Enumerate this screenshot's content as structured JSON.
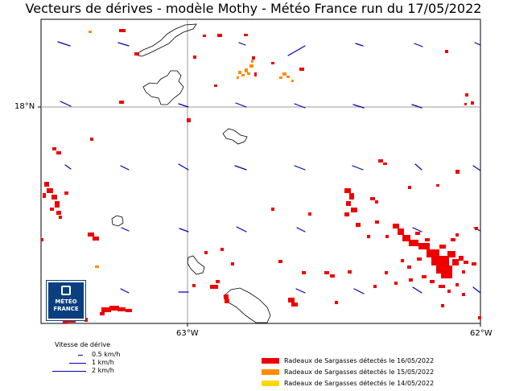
{
  "title": "Vecteurs de dérives - modèle Mothy - Météo France run du 17/05/2022",
  "axes": {
    "lat_label": "18°N",
    "lon_labels": [
      "63°W",
      "62°W"
    ]
  },
  "legend_speed": {
    "header": "Vitesse de dérive",
    "items": [
      "0.5 km/h",
      "1 km/h",
      "2 km/h"
    ]
  },
  "legend_detection": {
    "items": [
      {
        "label": "Radeaux de Sargasses détectés le 16/05/2022",
        "color": "#ee0000"
      },
      {
        "label": "Radeaux de Sargasses détectés le 15/05/2022",
        "color": "#ff8c00"
      },
      {
        "label": "Radeaux de Sargasses détectés le 14/05/2022",
        "color": "#ffd700"
      }
    ]
  },
  "logo": {
    "line1": "MÉTÉO",
    "line2": "FRANCE"
  },
  "colors": {
    "vector": "#0000b8",
    "coast": "#000000",
    "grid": "#999999"
  }
}
